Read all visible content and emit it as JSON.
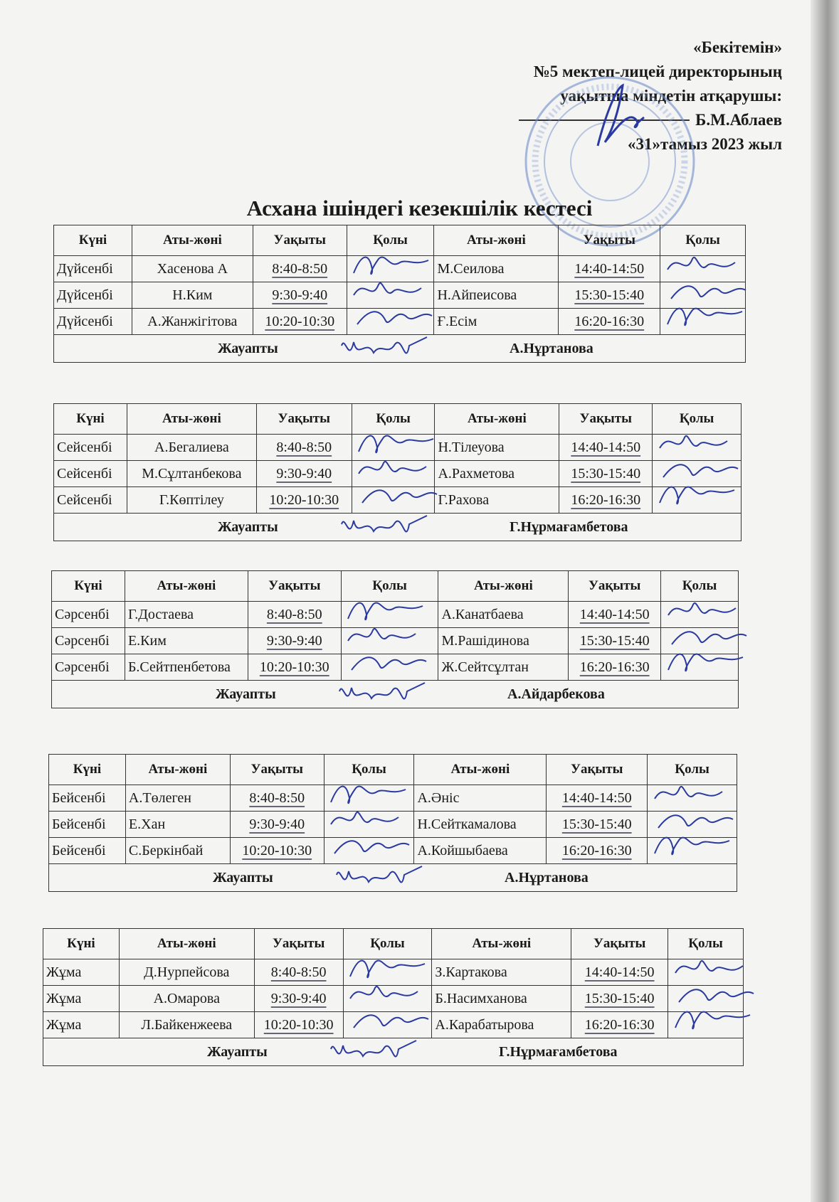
{
  "approval": {
    "line1": "«Бекітемін»",
    "line2": "№5 мектеп-лицей директорының",
    "line3": "уақытша міндетін атқарушы:",
    "line4": "Б.М.Аблаев",
    "line5": "«31»тамыз  2023 жыл"
  },
  "stamp_text": "ҚАЗАҚСТАН РЕСПУБЛИКАСЫ ... №5 МЕКТЕП-ЛИЦЕЙІ КОММУНАЛДЫҚ МЕМЛЕКЕТТІК МЕКЕМЕСІ",
  "title": "Асхана ішіндегі кезекшілік кестесі",
  "headers": [
    "Күні",
    "Аты-жөні",
    "Уақыты",
    "Қолы",
    "Аты-жөні",
    "Уақыты",
    "Қолы"
  ],
  "responsible_label": "Жауапты",
  "ink_color": "#2a3aa0",
  "tables": [
    {
      "day": "Дүйсенбі",
      "responsible": "А.Нұртанова",
      "rows": [
        [
          "Хасенова А",
          "8:40-8:50",
          "М.Сеилова",
          "14:40-14:50"
        ],
        [
          "Н.Ким",
          "9:30-9:40",
          "Н.Айпеисова",
          "15:30-15:40"
        ],
        [
          "А.Жанжігітова",
          "10:20-10:30",
          "Ғ.Есім",
          "16:20-16:30"
        ]
      ]
    },
    {
      "day": "Сейсенбі",
      "responsible": "Г.Нұрмағамбетова",
      "rows": [
        [
          "А.Бегалиева",
          "8:40-8:50",
          "Н.Тілеуова",
          "14:40-14:50"
        ],
        [
          "М.Сұлтанбекова",
          "9:30-9:40",
          "А.Рахметова",
          "15:30-15:40"
        ],
        [
          "Г.Көптілеу",
          "10:20-10:30",
          "Г.Рахова",
          "16:20-16:30"
        ]
      ]
    },
    {
      "day": "Сәрсенбі",
      "responsible": "А.Айдарбекова",
      "rows": [
        [
          "Г.Достаева",
          "8:40-8:50",
          "А.Канатбаева",
          "14:40-14:50"
        ],
        [
          "Е.Ким",
          "9:30-9:40",
          "М.Рашідинова",
          "15:30-15:40"
        ],
        [
          "Б.Сейтпенбетова",
          "10:20-10:30",
          "Ж.Сейтсұлтан",
          "16:20-16:30"
        ]
      ]
    },
    {
      "day": "Бейсенбі",
      "responsible": "А.Нұртанова",
      "rows": [
        [
          "А.Төлеген",
          "8:40-8:50",
          "А.Әніс",
          "14:40-14:50"
        ],
        [
          "Е.Хан",
          "9:30-9:40",
          "Н.Сейткамалова",
          "15:30-15:40"
        ],
        [
          "С.Беркінбай",
          "10:20-10:30",
          "А.Койшыбаева",
          "16:20-16:30"
        ]
      ]
    },
    {
      "day": "Жұма",
      "responsible": "Г.Нұрмағамбетова",
      "rows": [
        [
          "Д.Нурпейсова",
          "8:40-8:50",
          "З.Картакова",
          "14:40-14:50"
        ],
        [
          "А.Омарова",
          "9:30-9:40",
          "Б.Насимханова",
          "15:30-15:40"
        ],
        [
          "Л.Байкенжеева",
          "10:20-10:30",
          "А.Карабатырова",
          "16:20-16:30"
        ]
      ]
    }
  ]
}
